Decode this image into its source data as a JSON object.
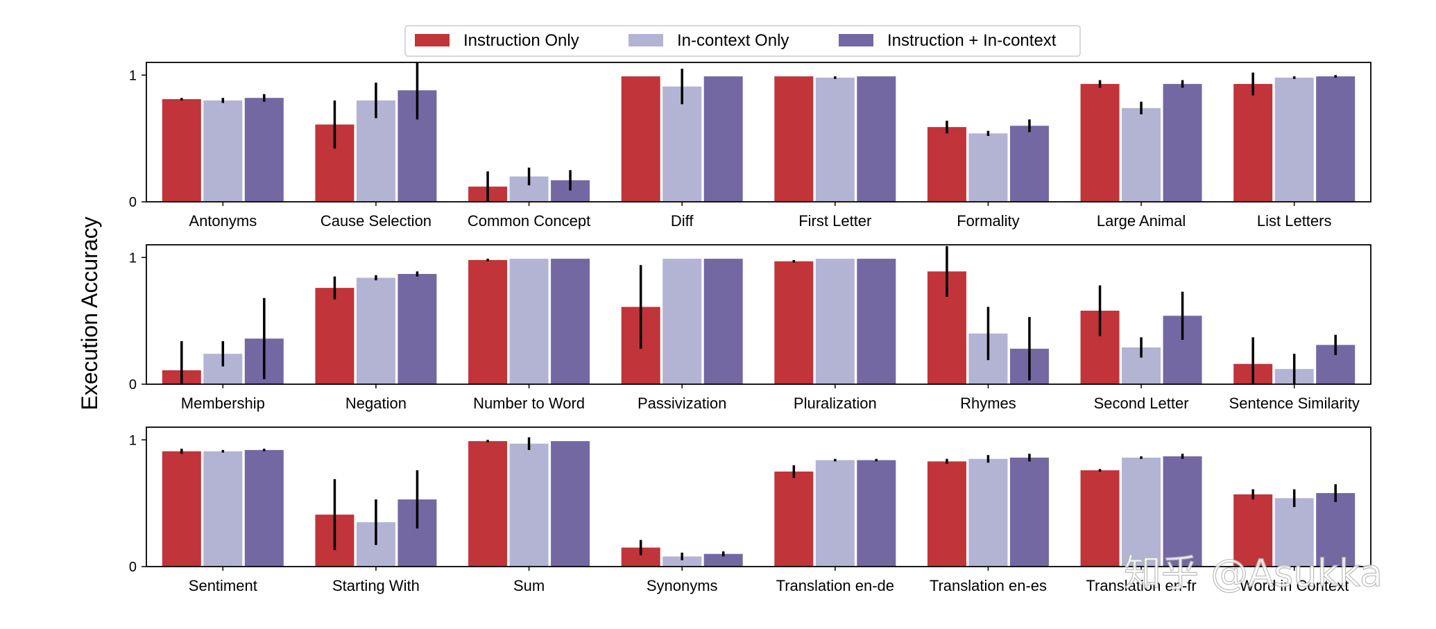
{
  "chart_data": {
    "type": "bar",
    "ylabel": "Execution Accuracy",
    "ylim": [
      0,
      1.1
    ],
    "yticks": [
      0,
      1
    ],
    "legend": {
      "placement": "top-center",
      "entries": [
        "Instruction Only",
        "In-context Only",
        "Instruction + In-context"
      ]
    },
    "series_colors": [
      "#c0343a",
      "#b3b3d4",
      "#7468a2"
    ],
    "panels": [
      {
        "categories": [
          "Antonyms",
          "Cause Selection",
          "Common Concept",
          "Diff",
          "First Letter",
          "Formality",
          "Large Animal",
          "List Letters"
        ],
        "series": [
          {
            "name": "Instruction Only",
            "values": [
              0.81,
              0.61,
              0.12,
              0.99,
              0.99,
              0.59,
              0.93,
              0.93
            ],
            "err": [
              0.01,
              0.19,
              0.12,
              0.0,
              0.0,
              0.05,
              0.03,
              0.09
            ]
          },
          {
            "name": "In-context Only",
            "values": [
              0.8,
              0.8,
              0.2,
              0.91,
              0.98,
              0.54,
              0.74,
              0.98
            ],
            "err": [
              0.02,
              0.14,
              0.07,
              0.14,
              0.01,
              0.02,
              0.05,
              0.01
            ]
          },
          {
            "name": "Instruction + In-context",
            "values": [
              0.82,
              0.88,
              0.17,
              0.99,
              0.99,
              0.6,
              0.93,
              0.99
            ],
            "err": [
              0.03,
              0.23,
              0.08,
              0.0,
              0.0,
              0.05,
              0.03,
              0.01
            ]
          }
        ]
      },
      {
        "categories": [
          "Membership",
          "Negation",
          "Number to Word",
          "Passivization",
          "Pluralization",
          "Rhymes",
          "Second Letter",
          "Sentence Similarity"
        ],
        "series": [
          {
            "name": "Instruction Only",
            "values": [
              0.11,
              0.76,
              0.98,
              0.61,
              0.97,
              0.89,
              0.58,
              0.16
            ],
            "err": [
              0.23,
              0.09,
              0.01,
              0.33,
              0.01,
              0.2,
              0.2,
              0.21
            ]
          },
          {
            "name": "In-context Only",
            "values": [
              0.24,
              0.84,
              0.99,
              0.99,
              0.99,
              0.4,
              0.29,
              0.12
            ],
            "err": [
              0.1,
              0.02,
              0.0,
              0.0,
              0.0,
              0.21,
              0.08,
              0.12
            ]
          },
          {
            "name": "Instruction + In-context",
            "values": [
              0.36,
              0.87,
              0.99,
              0.99,
              0.99,
              0.28,
              0.54,
              0.31
            ],
            "err": [
              0.32,
              0.02,
              0.0,
              0.0,
              0.0,
              0.25,
              0.19,
              0.08
            ]
          }
        ]
      },
      {
        "categories": [
          "Sentiment",
          "Starting With",
          "Sum",
          "Synonyms",
          "Translation en-de",
          "Translation en-es",
          "Translation en-fr",
          "Word in Context"
        ],
        "series": [
          {
            "name": "Instruction Only",
            "values": [
              0.91,
              0.41,
              0.99,
              0.15,
              0.75,
              0.83,
              0.76,
              0.57
            ],
            "err": [
              0.02,
              0.28,
              0.01,
              0.06,
              0.05,
              0.02,
              0.01,
              0.04
            ]
          },
          {
            "name": "In-context Only",
            "values": [
              0.91,
              0.35,
              0.97,
              0.08,
              0.84,
              0.85,
              0.86,
              0.54
            ],
            "err": [
              0.01,
              0.18,
              0.05,
              0.03,
              0.01,
              0.03,
              0.01,
              0.07
            ]
          },
          {
            "name": "Instruction + In-context",
            "values": [
              0.92,
              0.53,
              0.99,
              0.1,
              0.84,
              0.86,
              0.87,
              0.58
            ],
            "err": [
              0.01,
              0.23,
              0.0,
              0.02,
              0.01,
              0.03,
              0.02,
              0.07
            ]
          }
        ]
      }
    ]
  },
  "watermark": {
    "text": "知乎 @Asukka"
  }
}
